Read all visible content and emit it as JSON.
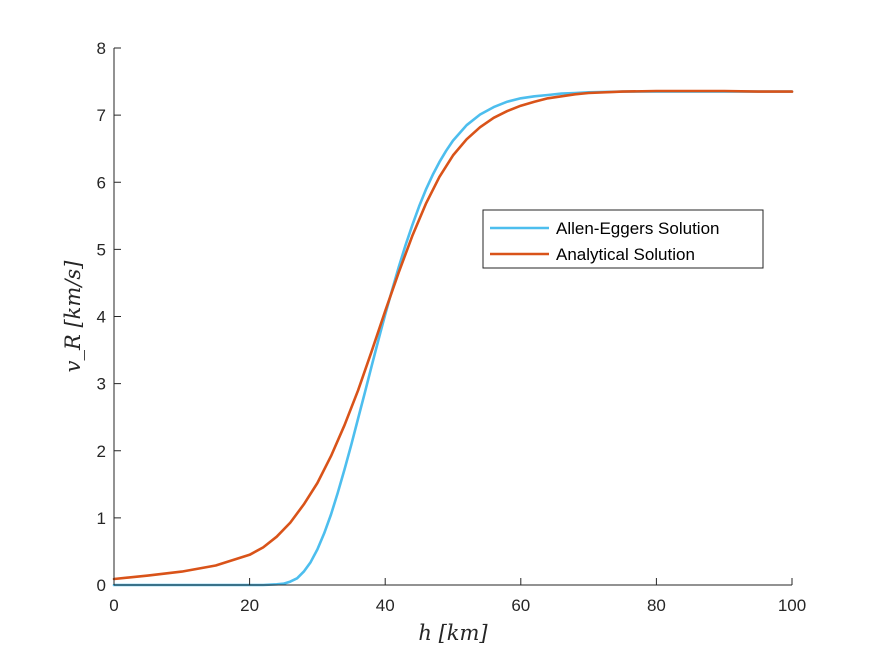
{
  "chart_data": {
    "type": "line",
    "xlabel": "h [km]",
    "ylabel": "v_R [km/s]",
    "xlim": [
      0,
      100
    ],
    "ylim": [
      0,
      8
    ],
    "xticks": [
      "0",
      "20",
      "40",
      "60",
      "80",
      "100"
    ],
    "yticks": [
      "0",
      "1",
      "2",
      "3",
      "4",
      "5",
      "6",
      "7",
      "8"
    ],
    "grid": false,
    "legend_position": "center-right",
    "series": [
      {
        "name": "Allen-Eggers Solution",
        "color": "#4DBEEE",
        "x": [
          0,
          10,
          20,
          22,
          24,
          25,
          26,
          27,
          28,
          29,
          30,
          31,
          32,
          33,
          34,
          35,
          36,
          37,
          38,
          39,
          40,
          41,
          42,
          43,
          44,
          45,
          46,
          47,
          48,
          49,
          50,
          52,
          54,
          56,
          58,
          60,
          62,
          64,
          66,
          68,
          70,
          75,
          80,
          85,
          90,
          95,
          100
        ],
        "y": [
          0.0,
          0.0,
          0.0,
          0.0,
          0.01,
          0.02,
          0.05,
          0.1,
          0.2,
          0.34,
          0.53,
          0.77,
          1.05,
          1.37,
          1.72,
          2.09,
          2.48,
          2.87,
          3.26,
          3.65,
          4.03,
          4.39,
          4.74,
          5.06,
          5.36,
          5.64,
          5.89,
          6.11,
          6.3,
          6.47,
          6.62,
          6.85,
          7.01,
          7.12,
          7.2,
          7.25,
          7.28,
          7.3,
          7.32,
          7.33,
          7.34,
          7.35,
          7.35,
          7.35,
          7.35,
          7.35,
          7.35
        ]
      },
      {
        "name": "Analytical Solution",
        "color": "#D95319",
        "x": [
          0,
          5,
          10,
          15,
          20,
          22,
          24,
          26,
          28,
          30,
          32,
          34,
          36,
          38,
          40,
          42,
          44,
          46,
          48,
          50,
          52,
          54,
          56,
          58,
          60,
          62,
          64,
          66,
          68,
          70,
          75,
          80,
          85,
          90,
          95,
          100
        ],
        "y": [
          0.09,
          0.14,
          0.2,
          0.29,
          0.45,
          0.56,
          0.72,
          0.93,
          1.2,
          1.52,
          1.92,
          2.38,
          2.9,
          3.48,
          4.08,
          4.66,
          5.2,
          5.68,
          6.08,
          6.4,
          6.64,
          6.82,
          6.96,
          7.06,
          7.14,
          7.2,
          7.25,
          7.28,
          7.31,
          7.33,
          7.35,
          7.36,
          7.36,
          7.36,
          7.35,
          7.35
        ]
      }
    ]
  }
}
